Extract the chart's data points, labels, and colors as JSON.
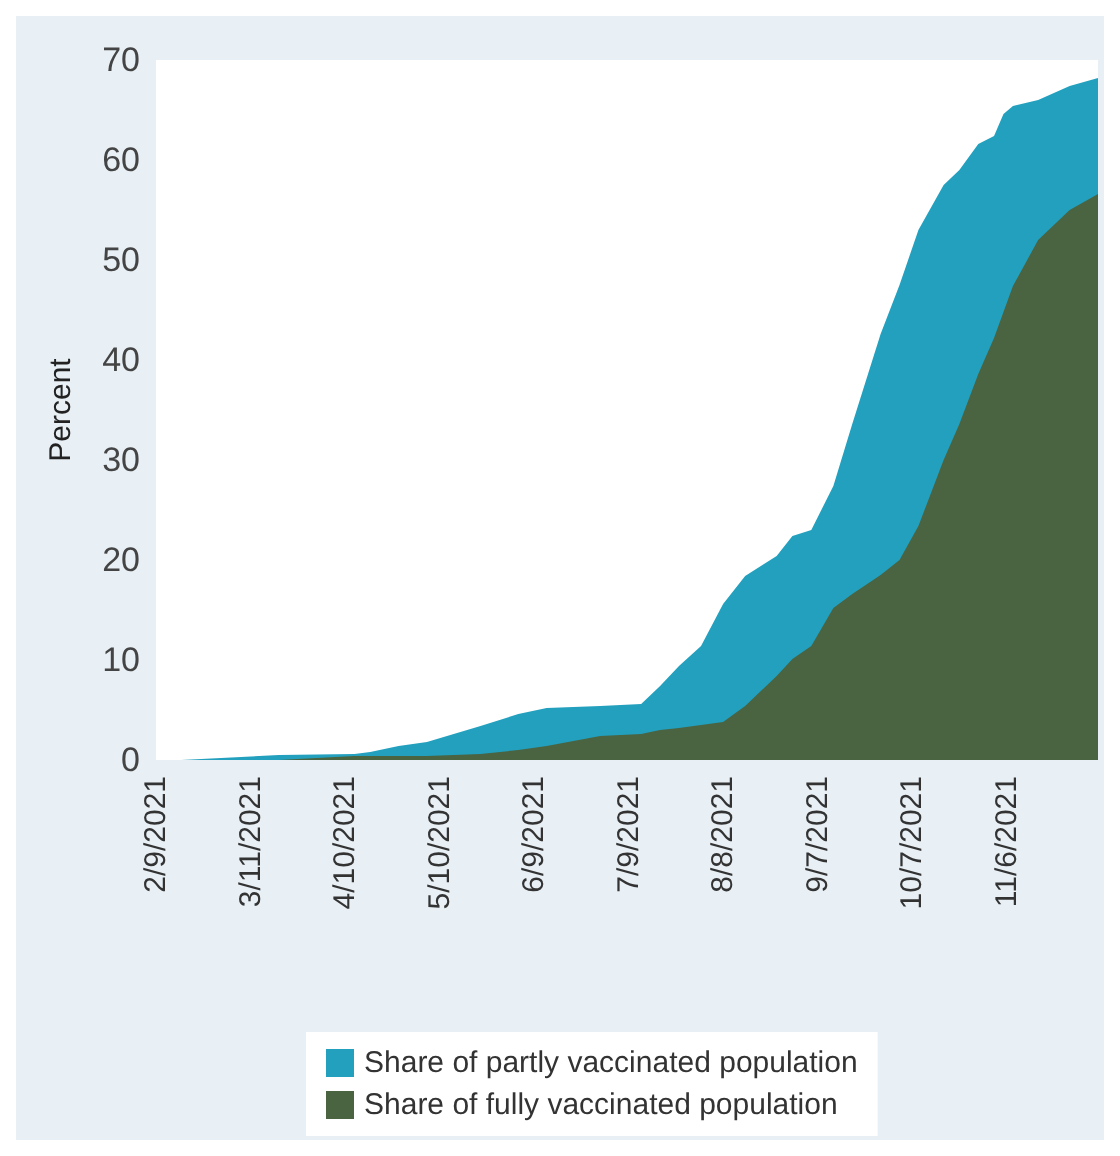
{
  "chart_data": {
    "type": "area",
    "ylabel": "Percent",
    "stacked": true,
    "legend": "bottom",
    "grid": false,
    "x": [
      "2021-02-17",
      "2021-03-20",
      "2021-04-13",
      "2021-04-18",
      "2021-04-27",
      "2021-05-06",
      "2021-05-23",
      "2021-06-04",
      "2021-06-13",
      "2021-06-30",
      "2021-07-13",
      "2021-07-19",
      "2021-07-25",
      "2021-08-01",
      "2021-08-08",
      "2021-08-15",
      "2021-08-25",
      "2021-08-30",
      "2021-09-05",
      "2021-09-12",
      "2021-09-18",
      "2021-09-27",
      "2021-10-03",
      "2021-10-09",
      "2021-10-17",
      "2021-10-22",
      "2021-10-28",
      "2021-11-02",
      "2021-11-05",
      "2021-11-08",
      "2021-11-16",
      "2021-11-26",
      "2021-12-05"
    ],
    "series": [
      {
        "name": "Share of fully vaccinated population",
        "color": "#4a6340",
        "values": [
          0,
          0,
          0.4,
          0.4,
          0.4,
          0.4,
          0.6,
          1.0,
          1.4,
          2.4,
          2.6,
          3.0,
          3.2,
          3.5,
          3.8,
          5.4,
          8.4,
          10.1,
          11.4,
          15.2,
          16.6,
          18.5,
          20,
          23.4,
          30,
          33.6,
          38.6,
          42.2,
          44.8,
          47.4,
          52,
          55,
          56.6
        ]
      },
      {
        "name": "Share of partly vaccinated population",
        "color": "#22a0be",
        "values": [
          0,
          0.5,
          0.2,
          0.4,
          1.0,
          1.4,
          2.8,
          3.6,
          3.8,
          3.0,
          3.0,
          4.4,
          6.2,
          7.9,
          11.8,
          13.0,
          12.0,
          12.3,
          11.6,
          12.2,
          17.0,
          24.1,
          27.5,
          29.6,
          27.5,
          25.4,
          23.0,
          20.2,
          19.8,
          18.0,
          14.0,
          12.4,
          11.6
        ]
      }
    ],
    "xlim": [
      "2021-02-09",
      "2021-12-05"
    ],
    "xticks": [
      {
        "value": "2021-02-09",
        "label": "2/9/2021"
      },
      {
        "value": "2021-03-11",
        "label": "3/11/2021"
      },
      {
        "value": "2021-04-10",
        "label": "4/10/2021"
      },
      {
        "value": "2021-05-10",
        "label": "5/10/2021"
      },
      {
        "value": "2021-06-09",
        "label": "6/9/2021"
      },
      {
        "value": "2021-07-09",
        "label": "7/9/2021"
      },
      {
        "value": "2021-08-08",
        "label": "8/8/2021"
      },
      {
        "value": "2021-09-07",
        "label": "9/7/2021"
      },
      {
        "value": "2021-10-07",
        "label": "10/7/2021"
      },
      {
        "value": "2021-11-06",
        "label": "11/6/2021"
      }
    ],
    "ylim": [
      0,
      70
    ],
    "yticks": [
      0,
      10,
      20,
      30,
      40,
      50,
      60,
      70
    ]
  }
}
